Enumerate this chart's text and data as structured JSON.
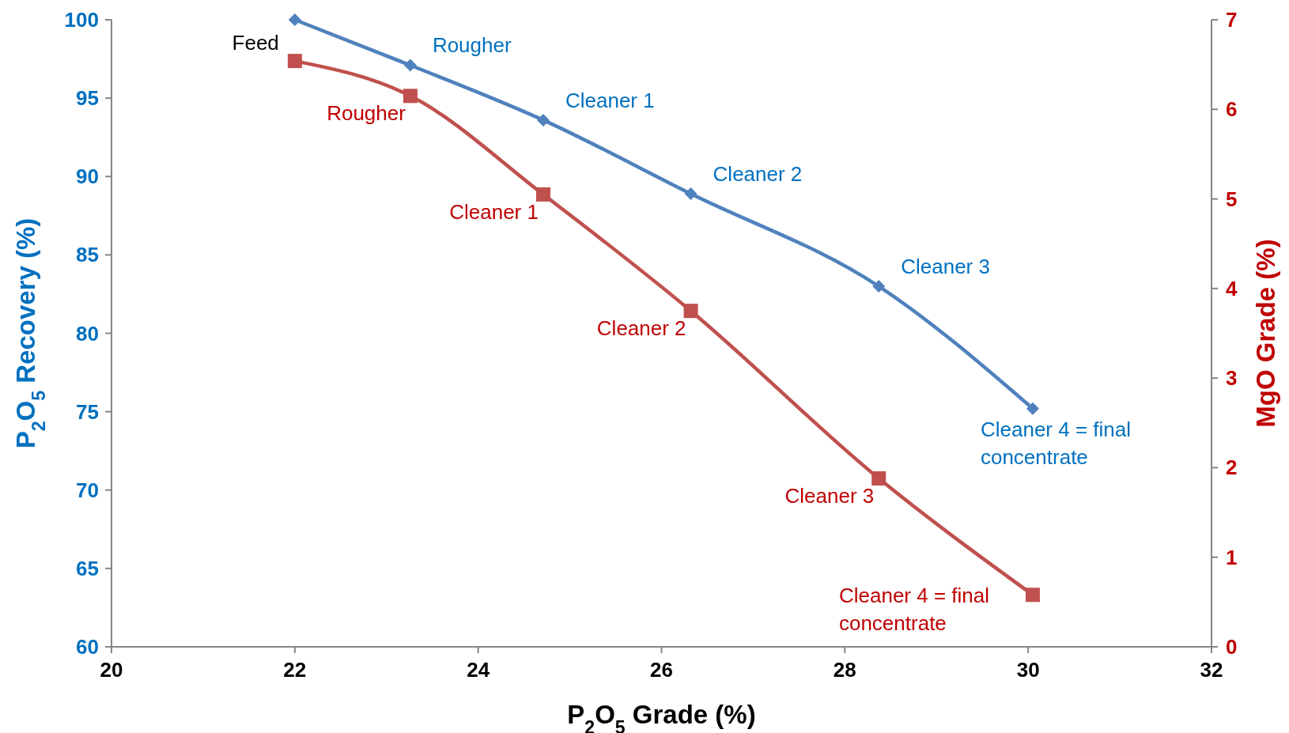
{
  "chart_data": {
    "type": "line",
    "xlabel": "P$_{2}$O$_{5}$ Grade (%)",
    "ylabel": "P$_{2}$O$_{5}$ Recovery (%)",
    "y2label": "MgO Grade (%)",
    "x": [
      22.0,
      23.26,
      24.71,
      26.32,
      28.37,
      30.05
    ],
    "xlim": [
      20,
      32
    ],
    "xticks": [
      20,
      22,
      24,
      26,
      28,
      30,
      32
    ],
    "ylim": [
      60,
      100
    ],
    "yticks": [
      60,
      65,
      70,
      75,
      80,
      85,
      90,
      95,
      100
    ],
    "y2lim": [
      0,
      7
    ],
    "y2ticks": [
      0,
      1,
      2,
      3,
      4,
      5,
      6,
      7
    ],
    "grid": false,
    "line_style": "solid",
    "series": [
      {
        "color": "#4f81bd",
        "marker": "diamond",
        "values": [
          100,
          97.1,
          93.6,
          88.9,
          83.0,
          75.2
        ],
        "value_labels": [
          null,
          "Rougher",
          "Cleaner 1",
          "Cleaner 2",
          "Cleaner 3",
          "Cleaner 4 = final concentrate"
        ]
      },
      {
        "color": "#c0504d",
        "marker": "square",
        "axis": "y2",
        "values": [
          6.54,
          6.15,
          5.05,
          3.75,
          1.88,
          0.58
        ],
        "value_labels": [
          null,
          "Rougher",
          "Cleaner 1",
          "Cleaner 2",
          "Cleaner 3",
          "Cleaner 4 = final concentrate"
        ]
      }
    ],
    "annotations": [
      {
        "text": "Feed",
        "x": 22.0,
        "y": 100
      }
    ]
  }
}
